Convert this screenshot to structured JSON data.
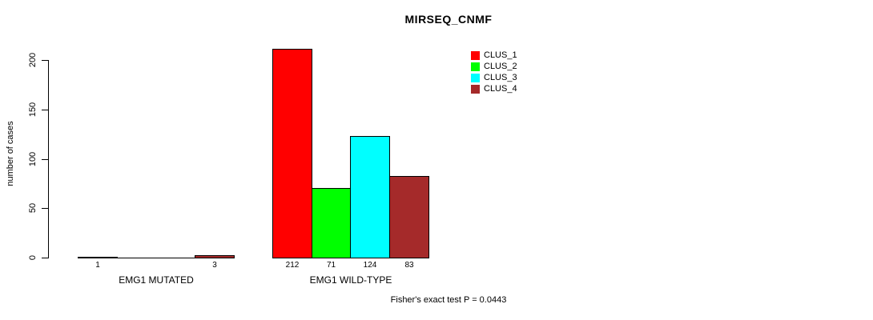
{
  "chart_data": {
    "type": "bar",
    "title": "MIRSEQ_CNMF",
    "ylabel": "number of cases",
    "xlabel": "",
    "categories": [
      "EMG1 MUTATED",
      "EMG1 WILD-TYPE"
    ],
    "series": [
      {
        "name": "CLUS_1",
        "color": "#FF0000",
        "values": [
          1,
          212
        ]
      },
      {
        "name": "CLUS_2",
        "color": "#00FF00",
        "values": [
          0,
          71
        ]
      },
      {
        "name": "CLUS_3",
        "color": "#00FFFF",
        "values": [
          0,
          124
        ]
      },
      {
        "name": "CLUS_4",
        "color": "#A52A2A",
        "values": [
          3,
          83
        ]
      }
    ],
    "yticks": [
      0,
      50,
      100,
      150,
      200
    ],
    "ylim": [
      0,
      212
    ],
    "grid": false,
    "bar_value_labels_shown": [
      [
        "1",
        "",
        "",
        "3"
      ],
      [
        "212",
        "71",
        "124",
        "83"
      ]
    ],
    "legend_position": "top-right-inside",
    "annotation": "Fisher's exact test P = 0.0443"
  }
}
